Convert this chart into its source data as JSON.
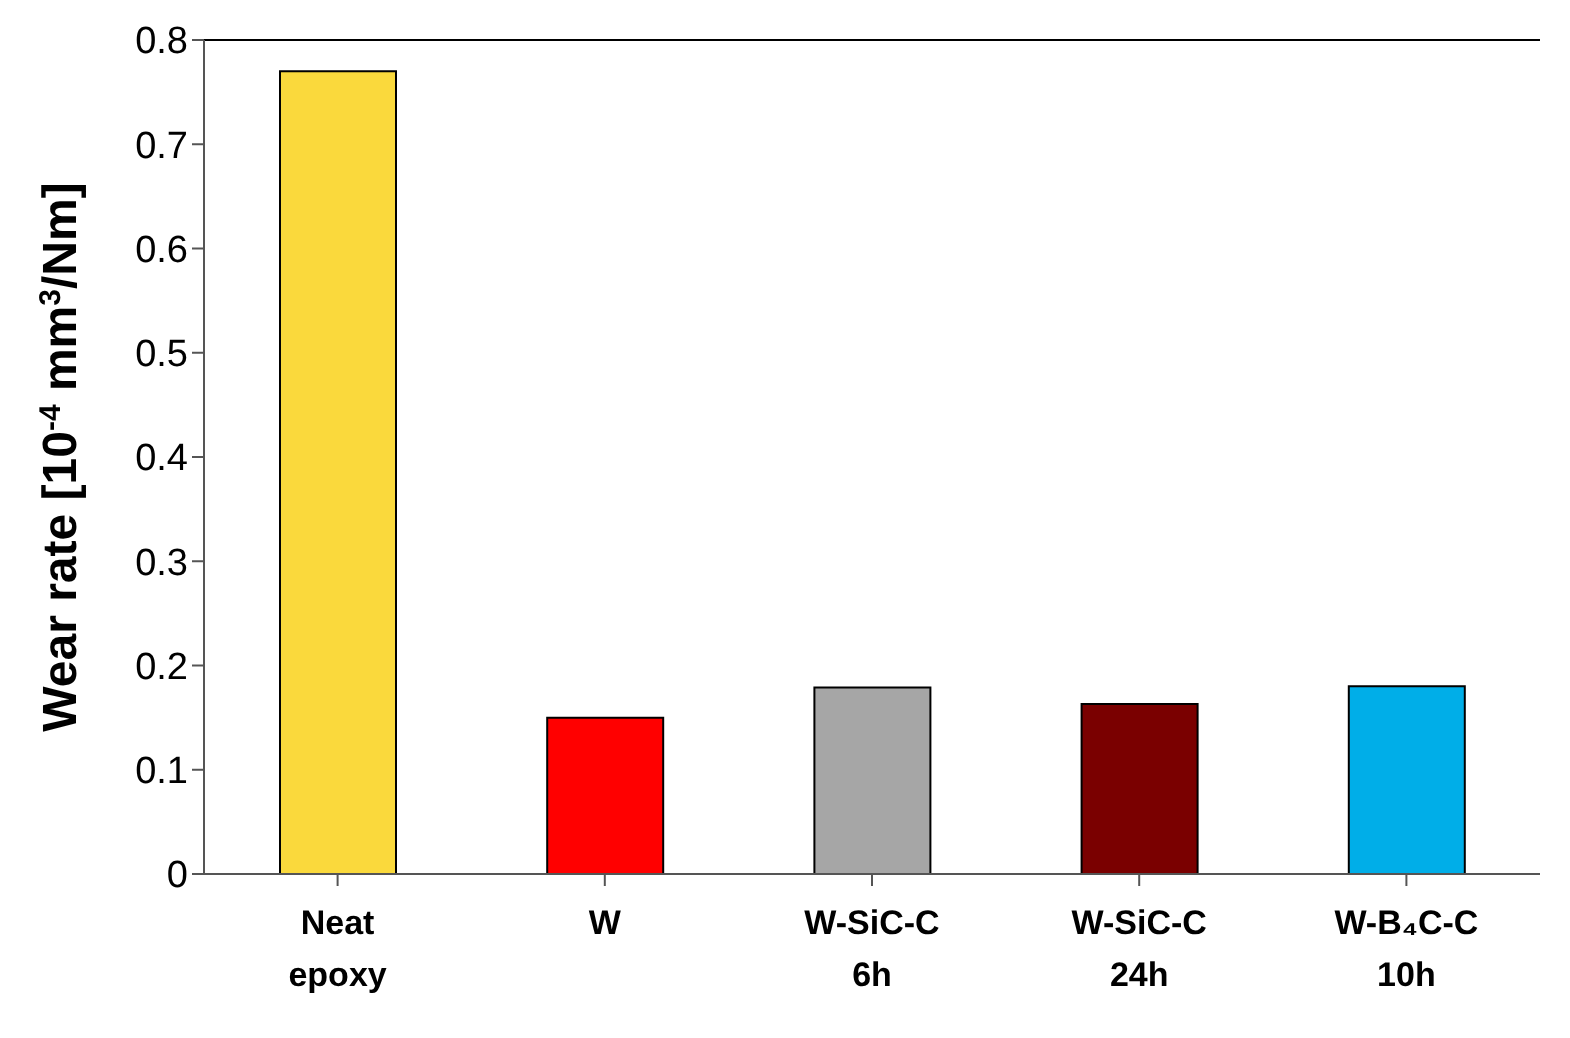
{
  "chart_data": {
    "type": "bar",
    "ylabel": "Wear rate [10$^{-4}$ mm$^{3}$/Nm]",
    "categories": [
      "Neat\nepoxy",
      "W",
      "W-SiC-C\n6h",
      "W-SiC-C\n24h",
      "W-B₄C-C\n10h"
    ],
    "values": [
      0.77,
      0.15,
      0.179,
      0.163,
      0.18
    ],
    "colors": [
      "#fad93c",
      "#ff0000",
      "#a6a6a6",
      "#7a0000",
      "#00aee8"
    ],
    "ylim": [
      0,
      0.8
    ],
    "yticks": [
      0,
      0.1,
      0.2,
      0.3,
      0.4,
      0.5,
      0.6,
      0.7,
      0.8
    ],
    "grid": false,
    "legend": false
  }
}
